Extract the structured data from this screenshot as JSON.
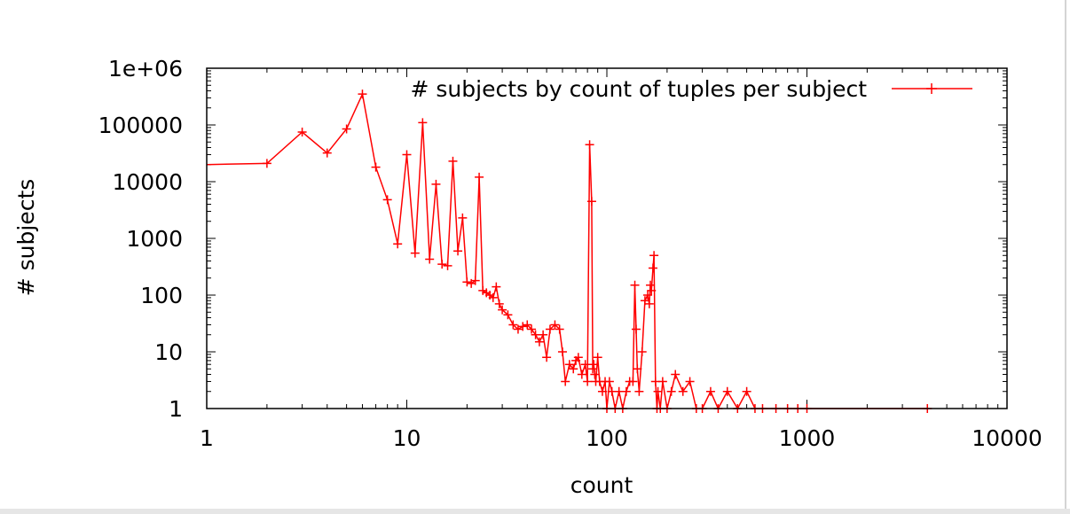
{
  "chart_data": {
    "type": "line",
    "title": "",
    "xlabel": "count",
    "ylabel": "# subjects",
    "x_scale": "log",
    "y_scale": "log",
    "xlim": [
      1,
      10000
    ],
    "ylim": [
      1,
      1000000
    ],
    "x_ticks": [
      {
        "value": 1,
        "label": "1"
      },
      {
        "value": 10,
        "label": "10"
      },
      {
        "value": 100,
        "label": "100"
      },
      {
        "value": 1000,
        "label": "1000"
      },
      {
        "value": 10000,
        "label": "10000"
      }
    ],
    "y_ticks": [
      {
        "value": 1,
        "label": "1"
      },
      {
        "value": 10,
        "label": "10"
      },
      {
        "value": 100,
        "label": "100"
      },
      {
        "value": 1000,
        "label": "1000"
      },
      {
        "value": 10000,
        "label": "10000"
      },
      {
        "value": 100000,
        "label": "100000"
      },
      {
        "value": 1000000,
        "label": "1e+06"
      }
    ],
    "grid": false,
    "legend_position": "top-right",
    "series": [
      {
        "name": "# subjects by count of tuples per subject",
        "color": "#ff0000",
        "marker": "plus",
        "x": [
          1,
          2,
          3,
          4,
          5,
          6,
          7,
          8,
          9,
          10,
          11,
          12,
          13,
          14,
          15,
          16,
          17,
          18,
          19,
          20,
          21,
          22,
          23,
          24,
          25,
          26,
          27,
          28,
          29,
          30,
          32,
          34,
          36,
          38,
          40,
          42,
          44,
          46,
          48,
          50,
          52,
          55,
          58,
          60,
          62,
          65,
          68,
          70,
          72,
          75,
          78,
          80,
          82,
          84,
          85,
          86,
          87,
          88,
          90,
          92,
          95,
          98,
          100,
          103,
          106,
          110,
          115,
          120,
          125,
          130,
          135,
          138,
          140,
          142,
          145,
          150,
          155,
          160,
          163,
          165,
          167,
          170,
          172,
          175,
          178,
          180,
          185,
          190,
          200,
          210,
          220,
          240,
          260,
          280,
          300,
          330,
          360,
          400,
          450,
          500,
          550,
          600,
          700,
          800,
          900,
          1000,
          4000
        ],
        "y": [
          20000,
          21000,
          75000,
          32000,
          85000,
          350000,
          18000,
          4800,
          800,
          30000,
          550,
          110000,
          430,
          9000,
          350,
          330,
          23000,
          600,
          2300,
          170,
          160,
          180,
          12000,
          120,
          110,
          100,
          90,
          140,
          70,
          55,
          45,
          30,
          25,
          28,
          30,
          25,
          20,
          15,
          20,
          8,
          25,
          30,
          25,
          10,
          3,
          6,
          5,
          7,
          8,
          4,
          6,
          3,
          45000,
          4500,
          5,
          6,
          4,
          3,
          8,
          3,
          2,
          3,
          1,
          3,
          2,
          1,
          2,
          1,
          2,
          3,
          3,
          150,
          25,
          5,
          2,
          10,
          80,
          100,
          70,
          150,
          120,
          300,
          500,
          3,
          1,
          2,
          1,
          3,
          1,
          2,
          4,
          2,
          3,
          1,
          1,
          2,
          1,
          2,
          1,
          2,
          1,
          1,
          1,
          1,
          1,
          1,
          1
        ]
      }
    ]
  }
}
